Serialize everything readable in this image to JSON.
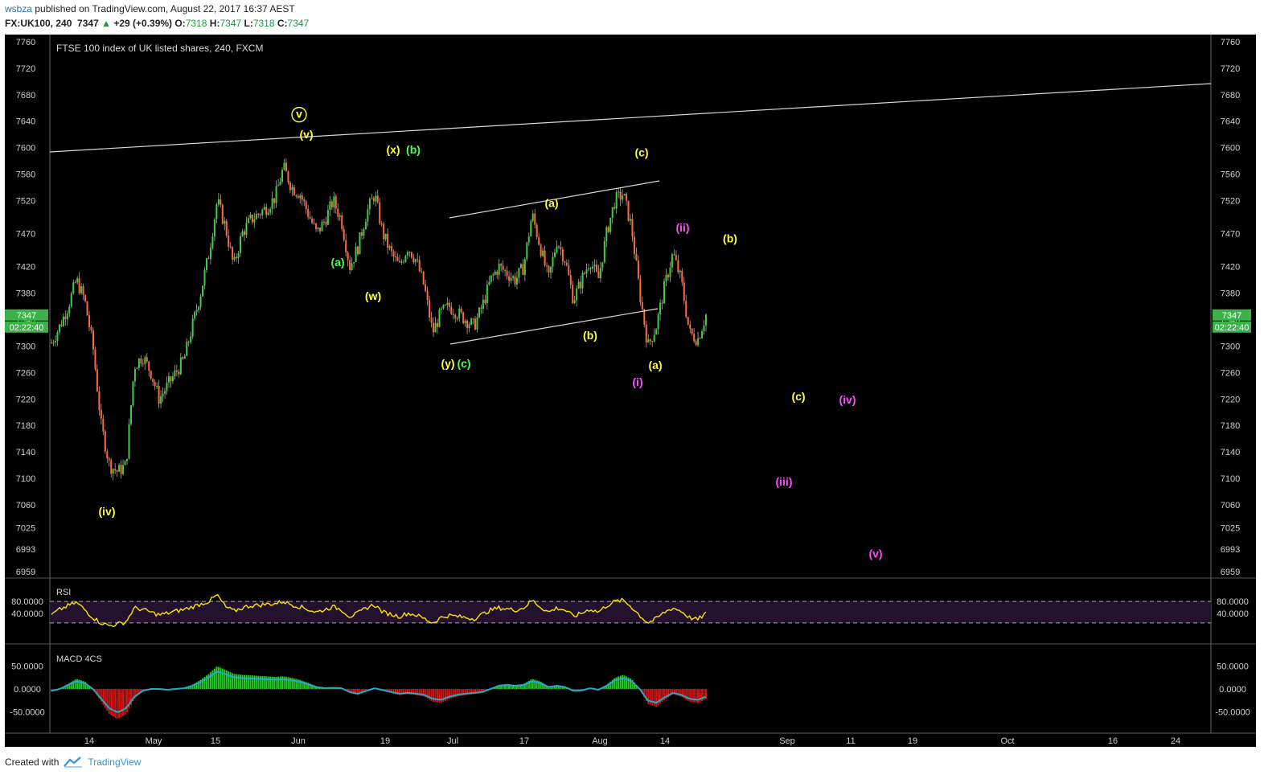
{
  "header": {
    "user": "wsbza",
    "published_text": "published on TradingView.com, August 22, 2017 16:37 AEST",
    "symbol_line": "FX:UK100, 240",
    "last": "7347",
    "change": "+29 (+0.39%)",
    "o_label": "O:",
    "o": "7318",
    "h_label": "H:",
    "h": "7347",
    "l_label": "L:",
    "l": "7318",
    "c_label": "C:",
    "c": "7347"
  },
  "footer": {
    "created_with": "Created with",
    "brand": "TradingView",
    "logo_icon": "tradingview-logo-icon"
  },
  "colors": {
    "background": "#000000",
    "up": "#3fcf3f",
    "down": "#ff6a3d",
    "wave_yellow": "#ffff3a",
    "wave_green": "#4cff4c",
    "wave_magenta": "#ff4cff",
    "rsi_line": "#ffe000",
    "macd_line": "#2aa8c8",
    "hist_up": "#22c922",
    "hist_down": "#d41515",
    "price_tag": "#3cb34a"
  },
  "chart_data": {
    "type": "candlestick",
    "title": "FTSE 100 index of UK listed shares, 240, FXCM",
    "price_axis_ticks": [
      "7760",
      "7720",
      "7680",
      "7640",
      "7600",
      "7560",
      "7520",
      "7470",
      "7420",
      "7380",
      "7340",
      "7300",
      "7260",
      "7220",
      "7180",
      "7140",
      "7100",
      "7060",
      "7025",
      "6993",
      "6959"
    ],
    "last_price_tag": "7347",
    "countdown_tag": "02:22:40",
    "time_axis_ticks": [
      "14",
      "May",
      "15",
      "Jun",
      "19",
      "Jul",
      "17",
      "Aug",
      "14",
      "Sep",
      "11",
      "19",
      "Oct",
      "16",
      "24"
    ],
    "price_path": [
      [
        0,
        7305
      ],
      [
        1,
        7330
      ],
      [
        2,
        7360
      ],
      [
        3,
        7400
      ],
      [
        4,
        7370
      ],
      [
        5,
        7300
      ],
      [
        6,
        7180
      ],
      [
        7,
        7120
      ],
      [
        8,
        7110
      ],
      [
        9,
        7120
      ],
      [
        10,
        7270
      ],
      [
        11,
        7285
      ],
      [
        12,
        7260
      ],
      [
        13,
        7220
      ],
      [
        14,
        7240
      ],
      [
        15,
        7260
      ],
      [
        16,
        7280
      ],
      [
        17,
        7330
      ],
      [
        18,
        7380
      ],
      [
        19,
        7440
      ],
      [
        20,
        7520
      ],
      [
        21,
        7480
      ],
      [
        22,
        7420
      ],
      [
        23,
        7470
      ],
      [
        24,
        7490
      ],
      [
        25,
        7500
      ],
      [
        26,
        7510
      ],
      [
        27,
        7525
      ],
      [
        28,
        7570
      ],
      [
        29,
        7540
      ],
      [
        30,
        7530
      ],
      [
        31,
        7500
      ],
      [
        32,
        7470
      ],
      [
        33,
        7490
      ],
      [
        34,
        7520
      ],
      [
        35,
        7490
      ],
      [
        36,
        7420
      ],
      [
        37,
        7450
      ],
      [
        38,
        7500
      ],
      [
        39,
        7530
      ],
      [
        40,
        7470
      ],
      [
        41,
        7440
      ],
      [
        42,
        7420
      ],
      [
        43,
        7450
      ],
      [
        44,
        7430
      ],
      [
        45,
        7390
      ],
      [
        46,
        7320
      ],
      [
        47,
        7350
      ],
      [
        48,
        7360
      ],
      [
        49,
        7350
      ],
      [
        50,
        7340
      ],
      [
        51,
        7330
      ],
      [
        52,
        7360
      ],
      [
        53,
        7400
      ],
      [
        54,
        7420
      ],
      [
        55,
        7410
      ],
      [
        56,
        7400
      ],
      [
        57,
        7420
      ],
      [
        58,
        7500
      ],
      [
        59,
        7450
      ],
      [
        60,
        7400
      ],
      [
        61,
        7460
      ],
      [
        62,
        7430
      ],
      [
        63,
        7370
      ],
      [
        64,
        7400
      ],
      [
        65,
        7430
      ],
      [
        66,
        7400
      ],
      [
        67,
        7470
      ],
      [
        68,
        7520
      ],
      [
        69,
        7530
      ],
      [
        70,
        7480
      ],
      [
        71,
        7380
      ],
      [
        72,
        7300
      ],
      [
        73,
        7330
      ],
      [
        74,
        7390
      ],
      [
        75,
        7440
      ],
      [
        76,
        7400
      ],
      [
        77,
        7320
      ],
      [
        78,
        7310
      ],
      [
        79,
        7347
      ]
    ],
    "trend_lines": [
      {
        "from": [
          "Apr",
          "7585"
        ],
        "to": [
          "end",
          "7690"
        ]
      },
      {
        "from": [
          "Jul 3",
          "7484"
        ],
        "to": [
          "Aug 11",
          "7540"
        ]
      },
      {
        "from": [
          "Jul 1",
          "7293"
        ],
        "to": [
          "Aug 13",
          "7385"
        ]
      }
    ],
    "wave_labels": [
      {
        "text": "v",
        "price": 7645,
        "color": "yellow",
        "circled": true
      },
      {
        "text": "(v)",
        "price": 7614,
        "color": "yellow"
      },
      {
        "text": "(iv)",
        "price": 7044,
        "color": "yellow"
      },
      {
        "text": "(a)",
        "price": 7421,
        "color": "green"
      },
      {
        "text": "(w)",
        "price": 7370,
        "color": "yellow"
      },
      {
        "text": "(x)",
        "price": 7591,
        "color": "yellow"
      },
      {
        "text": "(b)",
        "price": 7591,
        "color": "green"
      },
      {
        "text": "(y)",
        "price": 7268,
        "color": "yellow"
      },
      {
        "text": "(c)",
        "price": 7268,
        "color": "green"
      },
      {
        "text": "(a)",
        "price": 7510,
        "color": "yellow"
      },
      {
        "text": "(b)",
        "price": 7310,
        "color": "yellow"
      },
      {
        "text": "(c)",
        "price": 7587,
        "color": "yellow"
      },
      {
        "text": "(a)",
        "price": 7265,
        "color": "yellow"
      },
      {
        "text": "(i)",
        "price": 7240,
        "color": "magenta"
      },
      {
        "text": "(ii)",
        "price": 7473,
        "color": "magenta"
      },
      {
        "text": "(b)",
        "price": 7457,
        "color": "yellow"
      },
      {
        "text": "(c)",
        "price": 7218,
        "color": "yellow"
      },
      {
        "text": "(iv)",
        "price": 7213,
        "color": "magenta"
      },
      {
        "text": "(iii)",
        "price": 7089,
        "color": "magenta"
      },
      {
        "text": "(v)",
        "price": 6980,
        "color": "magenta"
      }
    ],
    "rsi": {
      "label": "RSI",
      "ticks": [
        "80.0000",
        "40.0000"
      ],
      "upper_band": 70,
      "lower_band": 30,
      "values": [
        45,
        55,
        62,
        68,
        55,
        40,
        30,
        25,
        28,
        32,
        58,
        55,
        50,
        45,
        48,
        52,
        55,
        60,
        65,
        70,
        82,
        60,
        52,
        58,
        62,
        63,
        65,
        66,
        70,
        64,
        60,
        55,
        50,
        55,
        60,
        55,
        42,
        48,
        58,
        64,
        50,
        46,
        42,
        48,
        45,
        38,
        30,
        40,
        44,
        42,
        40,
        38,
        46,
        54,
        58,
        56,
        54,
        58,
        72,
        60,
        50,
        58,
        54,
        42,
        48,
        56,
        50,
        62,
        70,
        72,
        60,
        44,
        30,
        38,
        50,
        58,
        52,
        40,
        36,
        48
      ]
    },
    "macd": {
      "label": "MACD 4CS",
      "ticks": [
        "50.0000",
        "0.0000",
        "-50.0000"
      ],
      "line": [
        -5,
        0,
        10,
        20,
        15,
        0,
        -25,
        -50,
        -60,
        -50,
        -20,
        -5,
        0,
        0,
        -2,
        0,
        2,
        8,
        18,
        30,
        45,
        38,
        30,
        28,
        27,
        26,
        25,
        24,
        25,
        22,
        18,
        12,
        5,
        2,
        3,
        2,
        -8,
        -12,
        -5,
        2,
        -3,
        -8,
        -12,
        -10,
        -12,
        -15,
        -25,
        -28,
        -20,
        -15,
        -12,
        -10,
        -8,
        0,
        8,
        10,
        8,
        10,
        20,
        15,
        5,
        8,
        5,
        -5,
        -4,
        2,
        -2,
        8,
        22,
        28,
        20,
        0,
        -30,
        -35,
        -22,
        -10,
        -15,
        -25,
        -28,
        -20
      ]
    }
  }
}
